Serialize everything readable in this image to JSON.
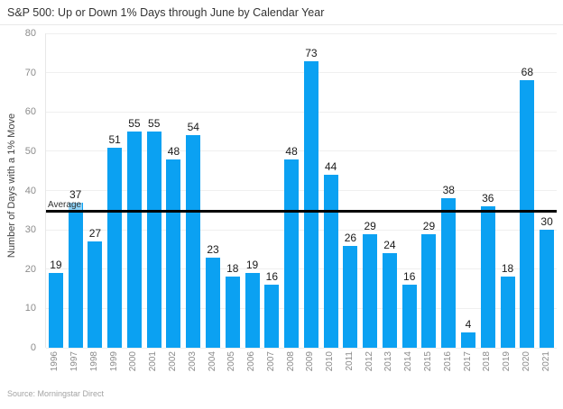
{
  "title": "S&P 500: Up or Down 1% Days through June by Calendar Year",
  "source": "Source: Morningstar Direct",
  "y_axis": {
    "label": "Number of Days with a 1% Move",
    "ticks": [
      0,
      10,
      20,
      30,
      40,
      50,
      60,
      70,
      80
    ],
    "max": 80
  },
  "average": {
    "label": "Average",
    "value": 34.8
  },
  "colors": {
    "bar": "#0ba1f2",
    "average_line": "#000000",
    "value_label": "#1a1a1a",
    "tick_label": "#8c8c8c",
    "gridline": "#efefef"
  },
  "chart_data": {
    "type": "bar",
    "title": "S&P 500: Up or Down 1% Days through June by Calendar Year",
    "categories": [
      "1996",
      "1997",
      "1998",
      "1999",
      "2000",
      "2001",
      "2002",
      "2003",
      "2004",
      "2005",
      "2006",
      "2007",
      "2008",
      "2009",
      "2010",
      "2011",
      "2012",
      "2013",
      "2014",
      "2015",
      "2016",
      "2017",
      "2018",
      "2019",
      "2020",
      "2021"
    ],
    "values": [
      19,
      37,
      27,
      51,
      55,
      55,
      48,
      54,
      23,
      18,
      19,
      16,
      48,
      73,
      44,
      26,
      29,
      24,
      16,
      29,
      38,
      4,
      36,
      18,
      68,
      30
    ],
    "xlabel": "",
    "ylabel": "Number of Days with a 1% Move",
    "ylim": [
      0,
      80
    ],
    "grid": true,
    "legend": "none",
    "annotations": [
      {
        "type": "hline",
        "label": "Average",
        "value": 34.8
      }
    ]
  }
}
